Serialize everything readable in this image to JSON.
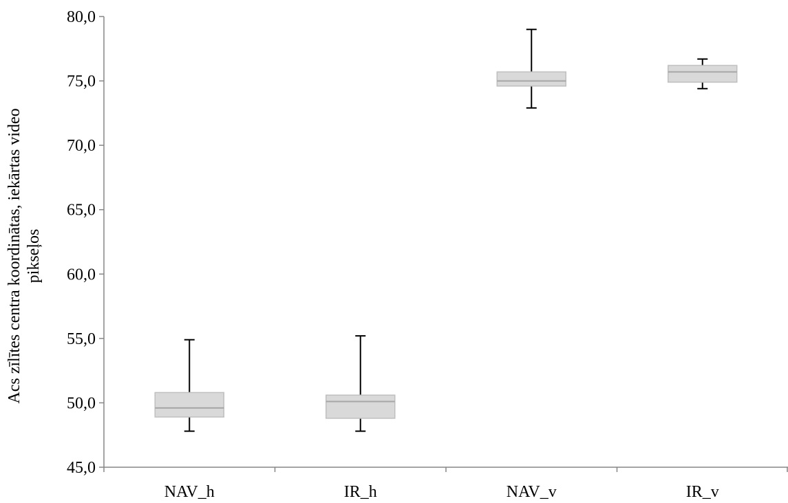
{
  "chart_data": {
    "type": "boxplot",
    "title": "",
    "xlabel": "",
    "ylabel": {
      "line1": "Acs zīlītes centra koordinātas, iekārtas video",
      "line2": "pikseļos"
    },
    "ylim": [
      45,
      80
    ],
    "yticks": [
      "45,0",
      "50,0",
      "55,0",
      "60,0",
      "65,0",
      "70,0",
      "75,0",
      "80,0"
    ],
    "ytick_values": [
      45,
      50,
      55,
      60,
      65,
      70,
      75,
      80
    ],
    "grid": false,
    "legend": "none",
    "categories": [
      "NAV_h",
      "IR_h",
      "NAV_v",
      "IR_v"
    ],
    "boxes": [
      {
        "name": "NAV_h",
        "min": 47.8,
        "q1": 48.9,
        "median": 49.6,
        "q3": 50.8,
        "max": 54.9
      },
      {
        "name": "IR_h",
        "min": 47.8,
        "q1": 48.8,
        "median": 50.1,
        "q3": 50.6,
        "max": 55.2
      },
      {
        "name": "NAV_v",
        "min": 72.9,
        "q1": 74.6,
        "median": 75.0,
        "q3": 75.7,
        "max": 79.0
      },
      {
        "name": "IR_v",
        "min": 74.4,
        "q1": 74.9,
        "median": 75.7,
        "q3": 76.2,
        "max": 76.7
      }
    ],
    "colors": {
      "box_fill": "#d9d9d9",
      "box_stroke": "#bfbfbf",
      "median": "#a6a6a6",
      "whisker": "#000000",
      "axis": "#868686"
    }
  }
}
